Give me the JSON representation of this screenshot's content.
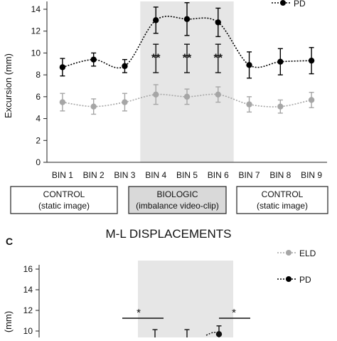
{
  "chart_data": [
    {
      "type": "line",
      "ylabel": "Excursion (mm)",
      "ylim": [
        0,
        14
      ],
      "yticks": [
        0,
        2,
        4,
        6,
        8,
        10,
        12,
        14
      ],
      "categories": [
        "BIN 1",
        "BIN 2",
        "BIN 3",
        "BIN 4",
        "BIN 5",
        "BIN 6",
        "BIN 7",
        "BIN 8",
        "BIN 9"
      ],
      "shaded_bins": [
        "BIN 4",
        "BIN 5",
        "BIN 6"
      ],
      "grid": false,
      "legend_position": "top-right",
      "legend": [
        "PD"
      ],
      "series": [
        {
          "name": "PD",
          "color": "#000000",
          "values": [
            8.7,
            9.4,
            8.8,
            13.0,
            13.1,
            12.8,
            8.9,
            9.2,
            9.3
          ],
          "error": [
            0.8,
            0.6,
            0.6,
            1.2,
            1.5,
            1.3,
            1.2,
            1.2,
            1.2
          ]
        },
        {
          "name": "",
          "color": "#a6a6a6",
          "values": [
            5.5,
            5.1,
            5.5,
            6.2,
            6.0,
            6.2,
            5.3,
            5.1,
            5.7
          ],
          "error": [
            0.8,
            0.7,
            0.8,
            0.9,
            0.7,
            0.7,
            0.7,
            0.6,
            0.7
          ]
        }
      ],
      "annotations": [
        {
          "category": "BIN 4",
          "text": "**"
        },
        {
          "category": "BIN 5",
          "text": "**"
        },
        {
          "category": "BIN 6",
          "text": "**"
        }
      ],
      "condition_boxes": [
        {
          "line1": "CONTROL",
          "line2": "(static image)",
          "highlight": false
        },
        {
          "line1": "BIOLOGIC",
          "line2": "(imbalance video-clip)",
          "highlight": true
        },
        {
          "line1": "CONTROL",
          "line2": "(static image)",
          "highlight": false
        }
      ]
    },
    {
      "type": "line",
      "panel_label": "C",
      "title": "M-L DISPLACEMENTS",
      "ylabel": "(mm)",
      "ylim": [
        0,
        16
      ],
      "yticks": [
        10,
        12,
        14,
        16
      ],
      "legend_position": "top-right",
      "legend": [
        "ELD",
        "PD"
      ],
      "series": [
        {
          "name": "ELD",
          "color": "#a6a6a6"
        },
        {
          "name": "PD",
          "color": "#000000",
          "partial_value": 9.7,
          "partial_error": 0.8
        }
      ],
      "annotations": [
        {
          "text": "*",
          "position": "left"
        },
        {
          "text": "*",
          "position": "right"
        }
      ]
    }
  ]
}
